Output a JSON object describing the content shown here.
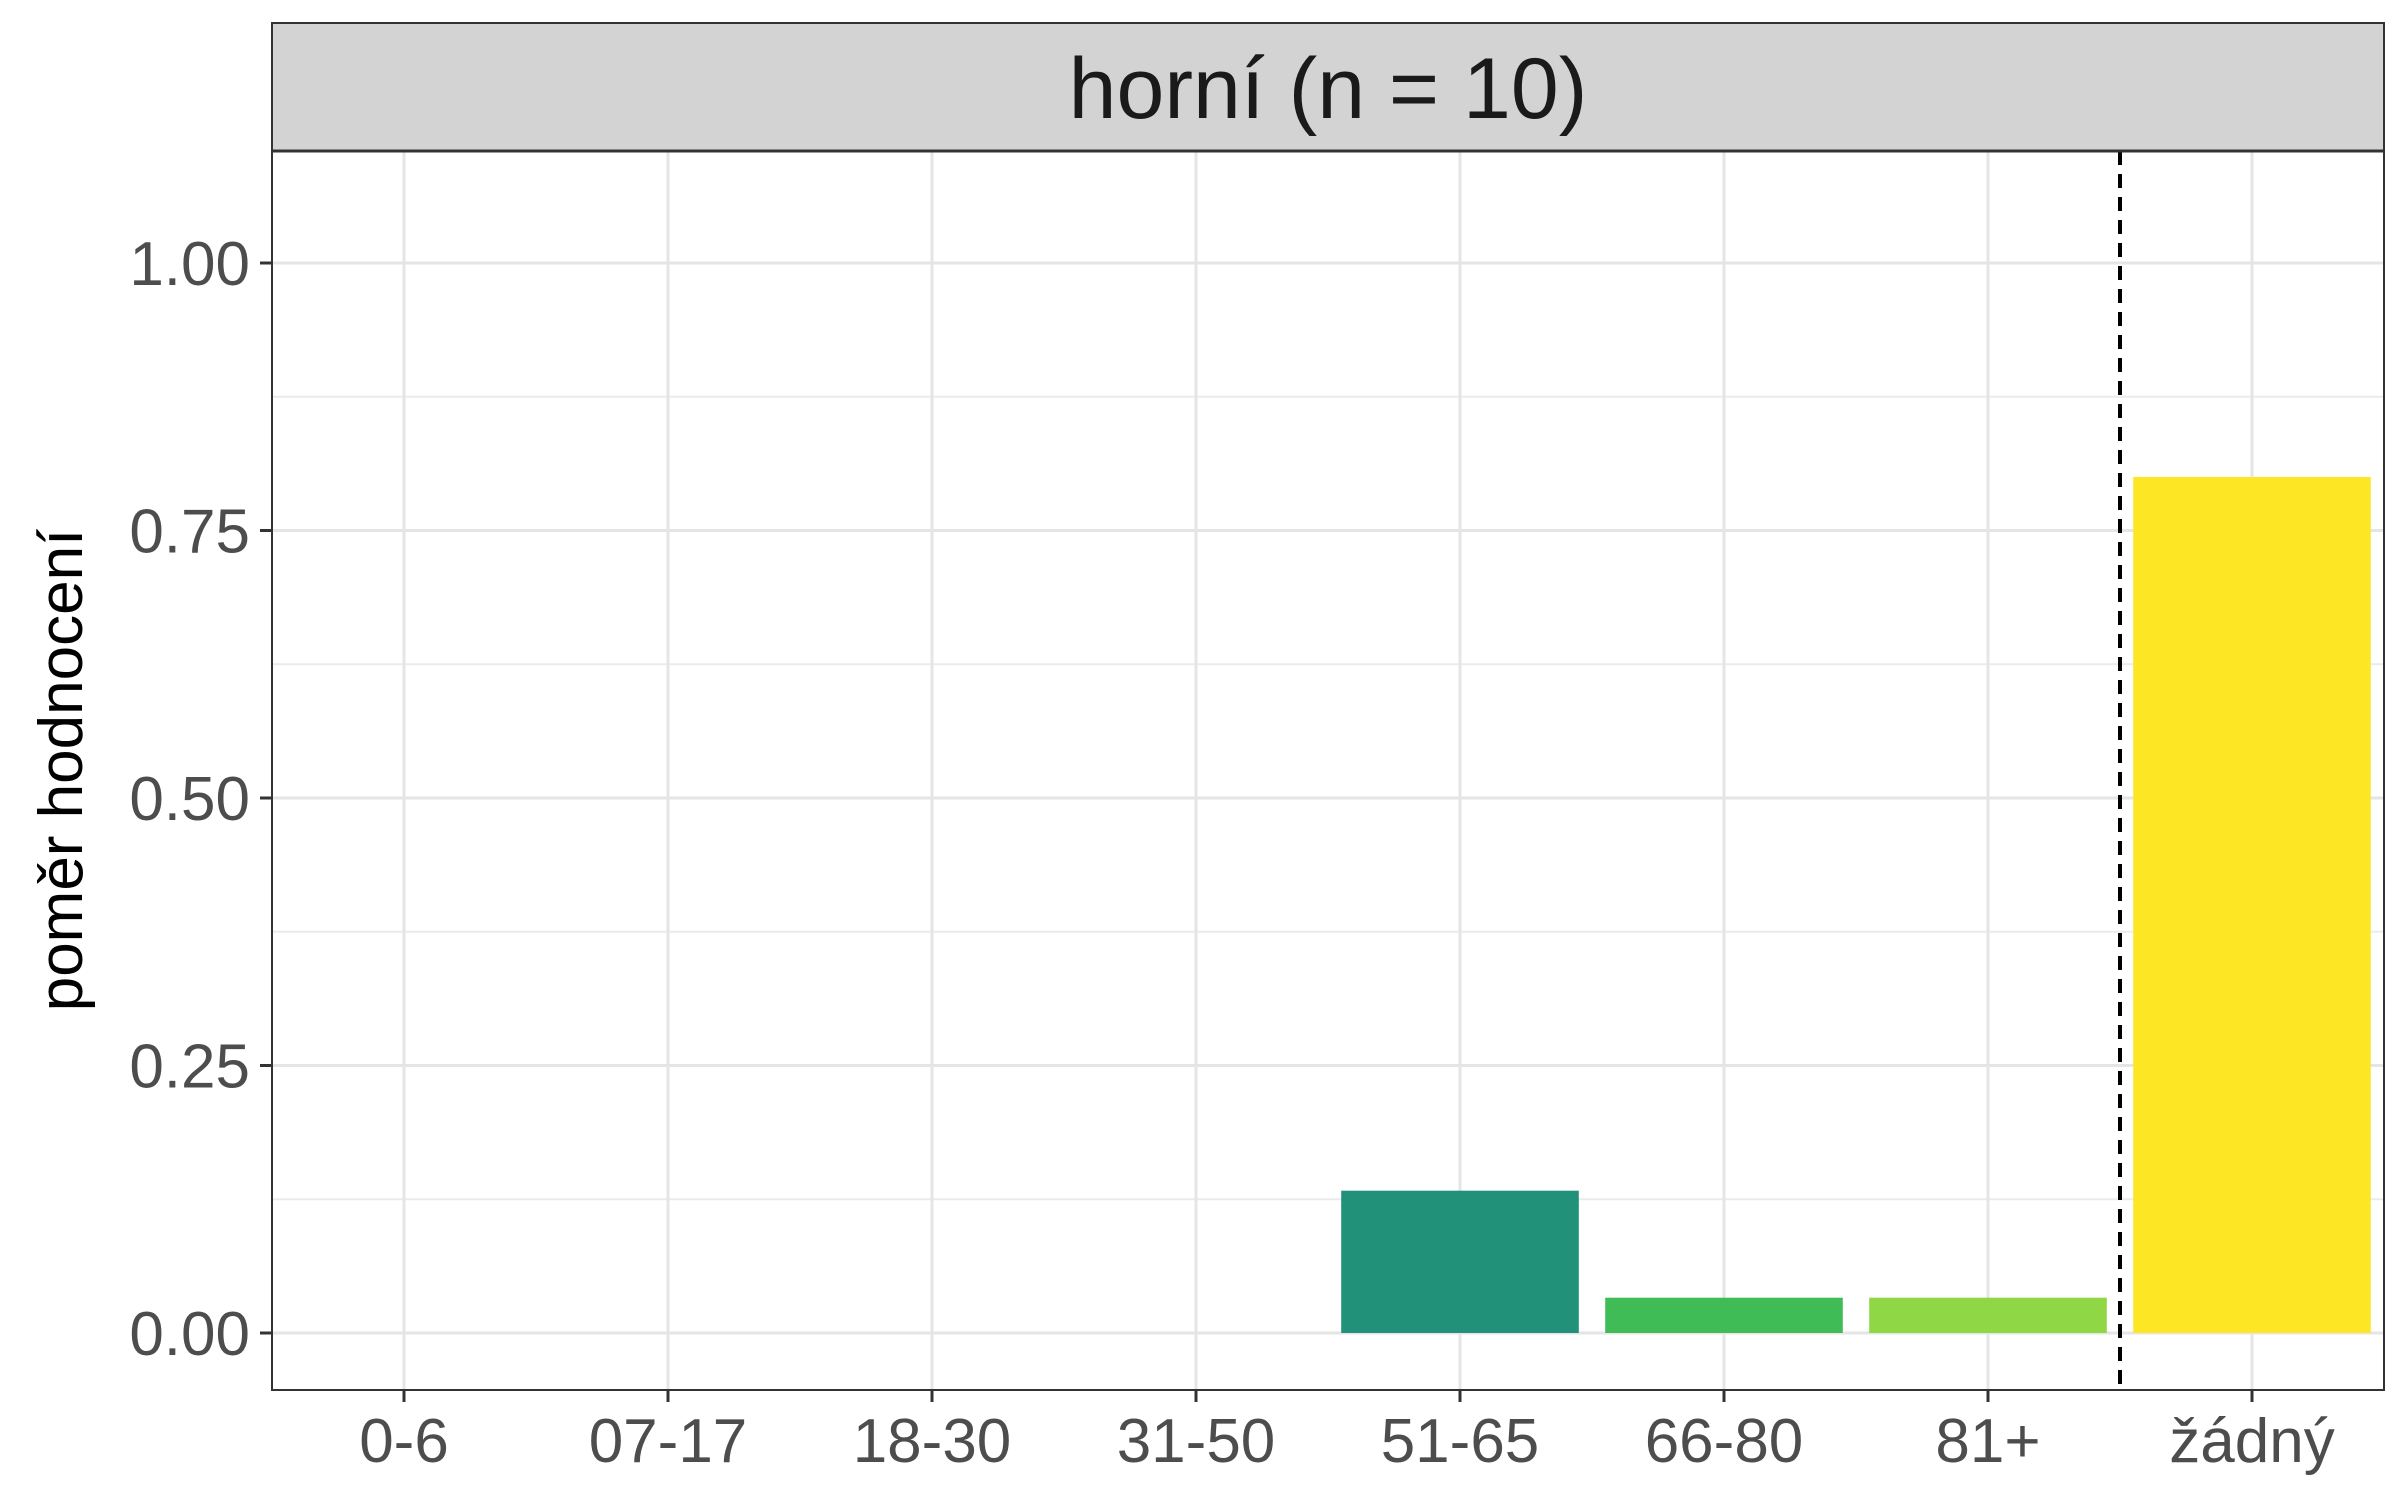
{
  "chart_data": {
    "type": "bar",
    "title": "horní (n = 10)",
    "xlabel": "",
    "ylabel": "poměr hodnocení",
    "categories": [
      "0-6",
      "07-17",
      "18-30",
      "31-50",
      "51-65",
      "66-80",
      "81+",
      "žádný"
    ],
    "values": [
      0,
      0,
      0,
      0,
      0.133,
      0.033,
      0.033,
      0.8
    ],
    "colors": [
      "#440154",
      "#46327e",
      "#365c8d",
      "#277f8e",
      "#21917a",
      "#3fbc56",
      "#8fd744",
      "#fde725"
    ],
    "ylim": [
      0,
      1.1
    ],
    "yticks": [
      0,
      0.25,
      0.5,
      0.75,
      1.0
    ],
    "ytick_labels": [
      "0.00",
      "0.25",
      "0.50",
      "0.75",
      "1.00"
    ],
    "dashed_separator_before": "žádný",
    "grid": true,
    "legend": "none"
  }
}
